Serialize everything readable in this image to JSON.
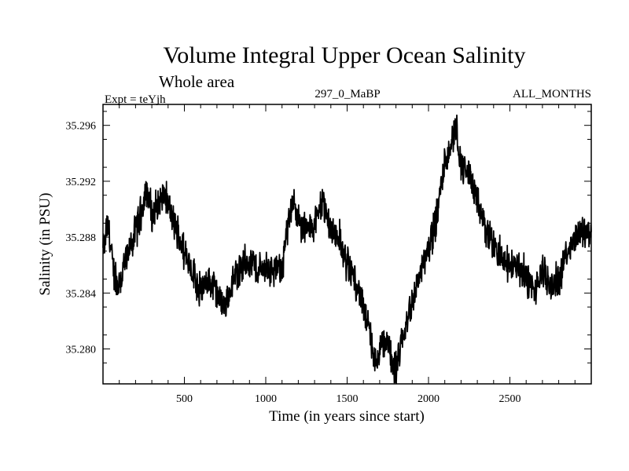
{
  "chart_data": {
    "type": "line",
    "title": "Volume Integral Upper Ocean Salinity",
    "subtitle": "Whole area",
    "expt_label": "Expt = teYjh",
    "run_label": "297_0_MaBP",
    "months_label": "ALL_MONTHS",
    "xlabel": "Time (in years since start)",
    "ylabel": "Salinity (in PSU)",
    "xlim": [
      0,
      3000
    ],
    "ylim": [
      35.2775,
      35.2975
    ],
    "x_ticks": [
      500,
      1000,
      1500,
      2000,
      2500
    ],
    "x_tick_labels": [
      "500",
      "1000",
      "1500",
      "2000",
      "2500"
    ],
    "y_ticks": [
      35.28,
      35.284,
      35.288,
      35.292,
      35.296
    ],
    "y_tick_labels": [
      "35.280",
      "35.284",
      "35.288",
      "35.292",
      "35.296"
    ],
    "series": [
      {
        "name": "salinity",
        "color": "#000000",
        "x": [
          0,
          30,
          60,
          90,
          120,
          150,
          200,
          250,
          270,
          300,
          350,
          380,
          420,
          470,
          500,
          550,
          600,
          650,
          700,
          750,
          800,
          850,
          900,
          950,
          1000,
          1050,
          1100,
          1150,
          1170,
          1200,
          1250,
          1300,
          1350,
          1400,
          1450,
          1500,
          1550,
          1600,
          1650,
          1680,
          1700,
          1750,
          1780,
          1800,
          1850,
          1900,
          1950,
          2000,
          2050,
          2100,
          2150,
          2170,
          2200,
          2250,
          2300,
          2350,
          2400,
          2450,
          2500,
          2550,
          2600,
          2650,
          2700,
          2750,
          2800,
          2850,
          2900,
          2950,
          3000
        ],
        "values": [
          35.287,
          35.289,
          35.286,
          35.2845,
          35.2855,
          35.2865,
          35.2885,
          35.2905,
          35.2915,
          35.2895,
          35.2905,
          35.291,
          35.2895,
          35.288,
          35.287,
          35.2855,
          35.284,
          35.285,
          35.284,
          35.283,
          35.285,
          35.286,
          35.2865,
          35.2855,
          35.286,
          35.2855,
          35.286,
          35.2895,
          35.291,
          35.289,
          35.2885,
          35.289,
          35.2905,
          35.2885,
          35.288,
          35.286,
          35.285,
          35.283,
          35.2805,
          35.2785,
          35.28,
          35.2805,
          35.279,
          35.2785,
          35.281,
          35.2835,
          35.2855,
          35.287,
          35.2895,
          35.2935,
          35.295,
          35.296,
          35.293,
          35.2925,
          35.2905,
          35.2885,
          35.2875,
          35.2865,
          35.286,
          35.286,
          35.285,
          35.284,
          35.2855,
          35.2845,
          35.285,
          35.287,
          35.288,
          35.2885,
          35.288
        ]
      }
    ]
  }
}
